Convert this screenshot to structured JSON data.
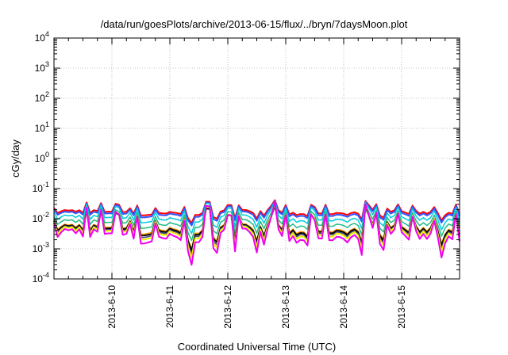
{
  "chart_data": {
    "type": "line",
    "title": "/data/run/goesPlots/archive/2013-06-15/flux/../bryn/7daysMoon.plot",
    "xlabel": "Coordinated Universal Time (UTC)",
    "ylabel": "cGy/day",
    "yscale": "log",
    "ylim": [
      0.0001,
      10000
    ],
    "y_tick_labels": [
      {
        "base": "10",
        "exp": "-4"
      },
      {
        "base": "10",
        "exp": "-3"
      },
      {
        "base": "10",
        "exp": "-2"
      },
      {
        "base": "10",
        "exp": "-1"
      },
      {
        "base": "10",
        "exp": "0"
      },
      {
        "base": "10",
        "exp": "1"
      },
      {
        "base": "10",
        "exp": "2"
      },
      {
        "base": "10",
        "exp": "3"
      },
      {
        "base": "10",
        "exp": "4"
      }
    ],
    "xlim": [
      "2013-06-09 00:00",
      "2013-06-16 00:00"
    ],
    "x_tick_labels": [
      "2013-6-10",
      "2013-6-11",
      "2013-6-12",
      "2013-6-13",
      "2013-6-14",
      "2013-6-15"
    ],
    "grid": true,
    "series": [
      {
        "color": "#ff0000",
        "base": 0.016,
        "spike": 0.6,
        "width": 2
      },
      {
        "color": "#3355ff",
        "base": 0.014,
        "spike": 0.6,
        "width": 2
      },
      {
        "color": "#00ccdd",
        "base": 0.01,
        "spike": 0.75,
        "width": 1.5
      },
      {
        "color": "#22bb88",
        "base": 0.0068,
        "spike": 0.8,
        "width": 1.5
      },
      {
        "color": "#ff9900",
        "base": 0.0046,
        "spike": 0.9,
        "width": 1.5
      },
      {
        "color": "#000000",
        "base": 0.0042,
        "spike": 0.9,
        "width": 2
      },
      {
        "color": "#444488",
        "base": 0.0038,
        "spike": 0.95,
        "width": 1.5
      },
      {
        "color": "#eeee00",
        "base": 0.0034,
        "spike": 1.0,
        "width": 2
      },
      {
        "color": "#ee00ee",
        "base": 0.0027,
        "spike": 1.1,
        "width": 2
      }
    ]
  }
}
